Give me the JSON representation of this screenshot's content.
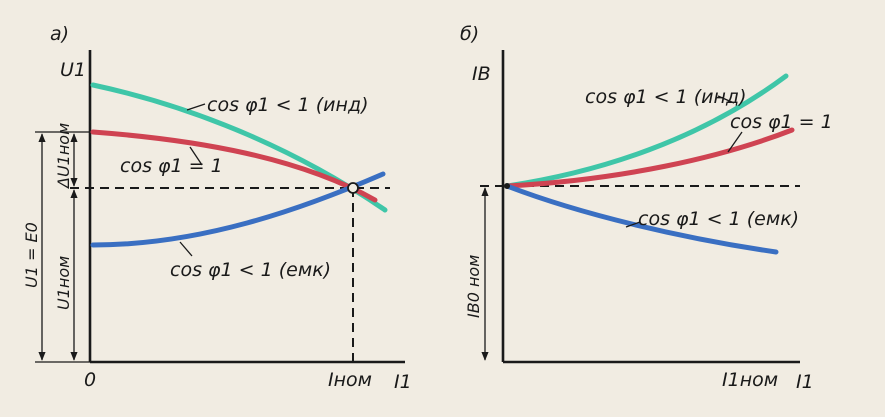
{
  "colors": {
    "paper": "#f1ece2",
    "ink": "#1a1a1a",
    "inductive": "#3fc6a8",
    "unity": "#cf4352",
    "capacitive": "#3a6fc2"
  },
  "panel_a": {
    "label": "а)",
    "y_axis": "U1",
    "x_axis": "I1",
    "origin": "0",
    "x_mark": "Iном",
    "dim_total": "U1 = E0",
    "dim_nom": "U1ном",
    "dim_delta": "ΔU1ном",
    "curves": {
      "inductive": "cos φ1 < 1 (инд)",
      "unity": "cos φ1 = 1",
      "capacitive": "cos φ1 < 1 (емк)"
    }
  },
  "panel_b": {
    "label": "б)",
    "y_axis": "IB",
    "x_axis": "I1",
    "x_mark": "I1ном",
    "dim_nom": "IB0 ном",
    "curves": {
      "inductive": "cos φ1 < 1 (инд)",
      "unity": "cos φ1 = 1",
      "capacitive": "cos φ1 < 1 (емк)"
    }
  }
}
